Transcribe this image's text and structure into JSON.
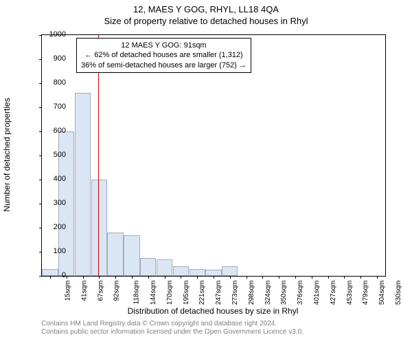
{
  "supertitle": "12, MAES Y GOG, RHYL, LL18 4QA",
  "title": "Size of property relative to detached houses in Rhyl",
  "ylabel": "Number of detached properties",
  "xlabel": "Distribution of detached houses by size in Rhyl",
  "footer_line1": "Contains HM Land Registry data © Crown copyright and database right 2024.",
  "footer_line2": "Contains public sector information licensed under the Open Government Licence v3.0.",
  "chart": {
    "type": "bar",
    "background_color": "#ffffff",
    "bar_fill": "#dbe6f5",
    "bar_border": "#a8a8c0",
    "marker_color": "#cc0000",
    "ylim": [
      0,
      1000
    ],
    "yticks": [
      0,
      100,
      200,
      300,
      400,
      500,
      600,
      700,
      800,
      900,
      1000
    ],
    "xticks": [
      "15sqm",
      "41sqm",
      "67sqm",
      "92sqm",
      "118sqm",
      "144sqm",
      "170sqm",
      "195sqm",
      "221sqm",
      "247sqm",
      "273sqm",
      "298sqm",
      "324sqm",
      "350sqm",
      "376sqm",
      "401sqm",
      "427sqm",
      "453sqm",
      "479sqm",
      "504sqm",
      "530sqm"
    ],
    "values": [
      30,
      600,
      760,
      400,
      180,
      170,
      75,
      70,
      40,
      30,
      25,
      40,
      0,
      0,
      0,
      0,
      0,
      0,
      0,
      0,
      0
    ],
    "marker_x": 91,
    "x_min": 2,
    "x_max": 543,
    "annotation": {
      "line1": "12 MAES Y GOG: 91sqm",
      "line2": "← 62% of detached houses are smaller (1,312)",
      "line3": "36% of semi-detached houses are larger (752) →"
    }
  }
}
